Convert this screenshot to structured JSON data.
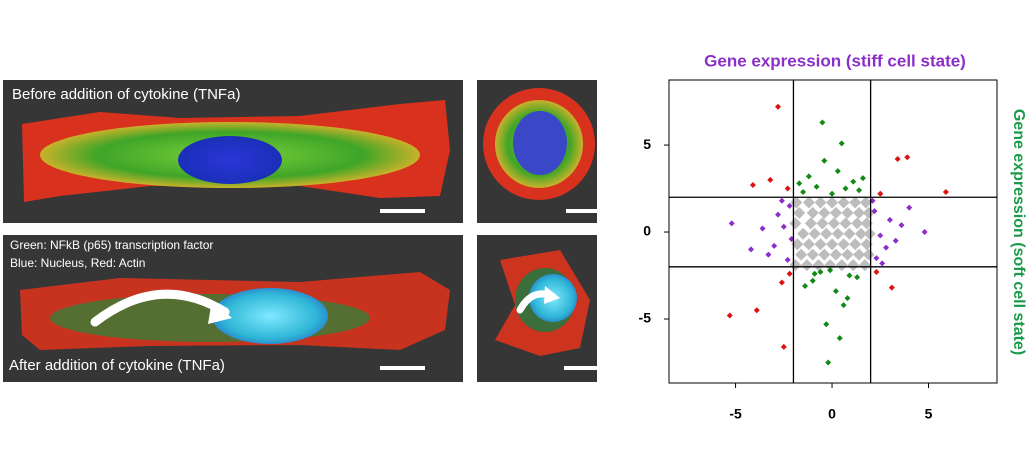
{
  "panels": {
    "before_label": "Before addition of cytokine (TNFa)",
    "legend_line1": "Green: NFkB (p65) transcription factor",
    "legend_line2": "Blue: Nucleus, Red: Actin",
    "after_label": "After addition of cytokine (TNFa)"
  },
  "chart_data": {
    "type": "scatter",
    "title": "Gene expression (stiff cell state)",
    "y_label": "Gene expression (soft cell state)",
    "xlim": [
      -8.45,
      8.55
    ],
    "ylim": [
      -8.68,
      8.74
    ],
    "xticks": [
      -5,
      0,
      5
    ],
    "yticks": [
      -5,
      0,
      5
    ],
    "vlines": [
      -2,
      2
    ],
    "hlines": [
      -2,
      2
    ],
    "series": [
      {
        "color": "#bdbdbd",
        "x": [
          -1.9,
          -1.3,
          -0.7,
          -0.1,
          0.5,
          1.1,
          1.7,
          -1.6,
          -1.0,
          -0.4,
          0.2,
          0.8,
          1.4,
          1.9,
          -1.8,
          -1.2,
          -0.6,
          0.0,
          0.6,
          1.2,
          1.8,
          -1.5,
          -0.9,
          -0.3,
          0.3,
          0.9,
          1.5,
          1.95,
          -1.9,
          -1.1,
          -0.5,
          0.1,
          0.7,
          1.3,
          1.8,
          -1.7,
          -1.0,
          -0.4,
          0.2,
          0.8,
          1.4,
          1.9,
          -1.85,
          -1.2,
          -0.6,
          0,
          0.6,
          1.2,
          1.75
        ],
        "y": [
          -1.9,
          -1.9,
          -1.9,
          -1.9,
          -1.9,
          -1.9,
          -1.9,
          -1.3,
          -1.3,
          -1.3,
          -1.3,
          -1.3,
          -1.3,
          -1.3,
          -0.7,
          -0.7,
          -0.7,
          -0.7,
          -0.7,
          -0.7,
          -0.7,
          -0.1,
          -0.1,
          -0.1,
          -0.1,
          -0.1,
          -0.1,
          -0.1,
          0.5,
          0.5,
          0.5,
          0.5,
          0.5,
          0.5,
          0.5,
          1.1,
          1.1,
          1.1,
          1.1,
          1.1,
          1.1,
          1.1,
          1.7,
          1.7,
          1.7,
          1.7,
          1.7,
          1.7,
          1.7
        ]
      },
      {
        "color": "#138a13",
        "x": [
          -1.5,
          -0.8,
          0,
          0.7,
          1.4,
          -1.2,
          0.3,
          1.1,
          -0.4,
          0.5,
          -1.7,
          1.6,
          -0.6,
          0.9,
          -0.1,
          -1.0,
          0.2,
          1.3,
          -1.4,
          0.6,
          -0.3,
          0.8,
          -0.9,
          0.4,
          -0.5,
          -0.2
        ],
        "y": [
          2.3,
          2.6,
          2.2,
          2.5,
          2.4,
          3.2,
          3.5,
          2.9,
          4.1,
          5.1,
          2.8,
          3.1,
          -2.3,
          -2.5,
          -2.2,
          -2.8,
          -3.4,
          -2.6,
          -3.1,
          -4.2,
          -5.3,
          -3.8,
          -2.4,
          -6.1,
          6.3,
          -7.5
        ]
      },
      {
        "color": "#8b2fc9",
        "x": [
          -2.2,
          -2.5,
          -3.0,
          -2.3,
          -2.8,
          -3.6,
          -2.1,
          -4.2,
          -2.6,
          -3.3,
          -5.2,
          2.2,
          2.5,
          3.0,
          2.3,
          2.8,
          3.6,
          2.1,
          4.0,
          2.6,
          3.3,
          4.8
        ],
        "y": [
          1.5,
          0.3,
          -0.8,
          -1.6,
          1.0,
          0.2,
          -0.4,
          -1.0,
          1.8,
          -1.3,
          0.5,
          1.2,
          -0.2,
          0.7,
          -1.5,
          -0.9,
          0.4,
          1.8,
          1.4,
          -1.8,
          -0.5,
          0.0
        ]
      },
      {
        "color": "#dd1111",
        "x": [
          -2.8,
          -4.1,
          -2.3,
          -3.2,
          5.9,
          3.4,
          3.9,
          2.5,
          -2.2,
          -2.6,
          -3.9,
          -5.3,
          2.3,
          3.1,
          -2.5
        ],
        "y": [
          7.2,
          2.7,
          2.5,
          3.0,
          2.3,
          4.2,
          4.3,
          2.2,
          -2.4,
          -2.9,
          -4.5,
          -4.8,
          -2.3,
          -3.2,
          -6.6
        ]
      }
    ]
  }
}
